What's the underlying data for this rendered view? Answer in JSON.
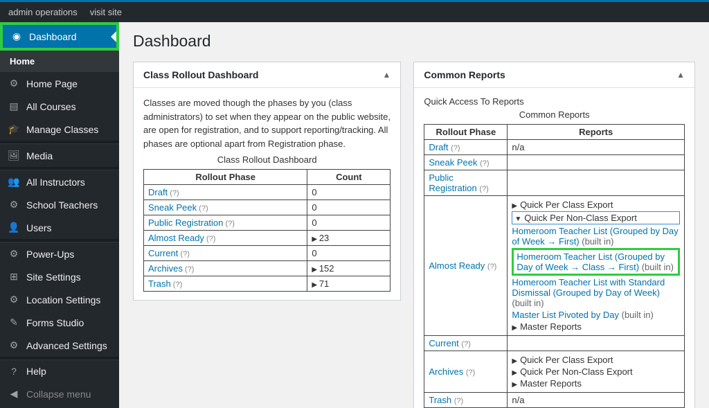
{
  "topbar": {
    "admin_ops": "admin operations",
    "visit_site": "visit site"
  },
  "sidebar": {
    "dashboard": "Dashboard",
    "home": "Home",
    "items": [
      {
        "label": "Home Page",
        "icon": "⚙"
      },
      {
        "label": "All Courses",
        "icon": "▤"
      },
      {
        "label": "Manage Classes",
        "icon": "🎓"
      }
    ],
    "media": {
      "label": "Media",
      "icon": "🖼"
    },
    "items2": [
      {
        "label": "All Instructors",
        "icon": "👥"
      },
      {
        "label": "School Teachers",
        "icon": "⚙"
      },
      {
        "label": "Users",
        "icon": "👤"
      }
    ],
    "items3": [
      {
        "label": "Power-Ups",
        "icon": "⚙"
      },
      {
        "label": "Site Settings",
        "icon": "⊞"
      },
      {
        "label": "Location Settings",
        "icon": "⚙"
      },
      {
        "label": "Forms Studio",
        "icon": "✎"
      },
      {
        "label": "Advanced Settings",
        "icon": "⚙"
      }
    ],
    "help": {
      "label": "Help",
      "icon": "?"
    },
    "collapse": {
      "label": "Collapse menu",
      "icon": "◀"
    }
  },
  "page_title": "Dashboard",
  "rollout_panel": {
    "title": "Class Rollout Dashboard",
    "desc": "Classes are moved though the phases by you (class administrators) to set when they appear on the public website, are open for registration, and to support reporting/tracking. All phases are optional apart from Registration phase.",
    "caption": "Class Rollout Dashboard",
    "col1": "Rollout Phase",
    "col2": "Count",
    "hint": "(?)",
    "rows": [
      {
        "label": "Draft",
        "count": "0",
        "arrow": ""
      },
      {
        "label": "Sneak Peek",
        "count": "0",
        "arrow": ""
      },
      {
        "label": "Public Registration",
        "count": "0",
        "arrow": ""
      },
      {
        "label": "Almost Ready",
        "count": "23",
        "arrow": "▶"
      },
      {
        "label": "Current",
        "count": "0",
        "arrow": ""
      },
      {
        "label": "Archives",
        "count": "152",
        "arrow": "▶"
      },
      {
        "label": "Trash",
        "count": "71",
        "arrow": "▶"
      }
    ]
  },
  "reports_panel": {
    "title": "Common Reports",
    "sub": "Quick Access To Reports",
    "caption": "Common Reports",
    "col1": "Rollout Phase",
    "col2": "Reports",
    "na": "n/a",
    "rows": {
      "draft": "Draft",
      "sneak": "Sneak Peek",
      "pubreg": "Public Registration",
      "almost": "Almost Ready",
      "current": "Current",
      "archives": "Archives",
      "trash": "Trash"
    },
    "almost_reports": {
      "r1": "Quick Per Class Export",
      "r2": "Quick Per Non-Class Export",
      "r3": "Homeroom Teacher List (Grouped by Day of Week → First)",
      "r4": "Homeroom Teacher List (Grouped by Day of Week → Class → First)",
      "r5": "Homeroom Teacher List with Standard Dismissal (Grouped by Day of Week)",
      "r6": "Master List Pivoted by Day",
      "r7": "Master Reports",
      "builtin": "(built in)"
    },
    "archives_reports": {
      "r1": "Quick Per Class Export",
      "r2": "Quick Per Non-Class Export",
      "r3": "Master Reports"
    }
  }
}
